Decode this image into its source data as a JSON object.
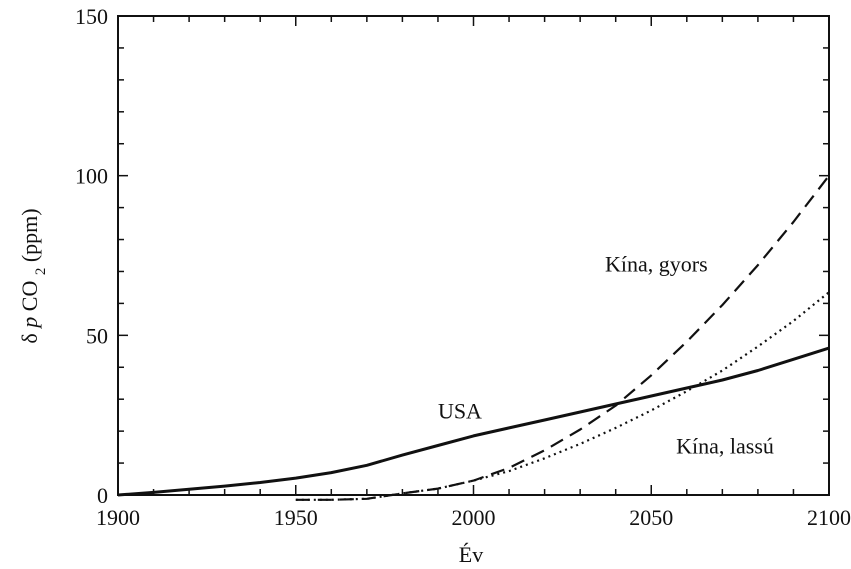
{
  "chart_data": {
    "type": "line",
    "xlabel": "Év",
    "ylabel_parts": {
      "delta": "δ",
      "p": "p",
      "co": "CO",
      "sub": "2",
      "unit": " (ppm)"
    },
    "xlim": [
      1900,
      2100
    ],
    "ylim": [
      0,
      150
    ],
    "x_ticks": [
      1900,
      1950,
      2000,
      2050,
      2100
    ],
    "y_ticks": [
      0,
      50,
      100,
      150
    ],
    "x_ticklabels": [
      "1900",
      "1950",
      "2000",
      "2050",
      "2100"
    ],
    "y_ticklabels": [
      "0",
      "50",
      "100",
      "150"
    ],
    "grid": false,
    "series": [
      {
        "name": "USA",
        "style": "solid",
        "x": [
          1900,
          1910,
          1920,
          1930,
          1940,
          1950,
          1960,
          1970,
          1980,
          1990,
          2000,
          2010,
          2020,
          2030,
          2040,
          2050,
          2060,
          2070,
          2080,
          2090,
          2100
        ],
        "y": [
          0,
          0.8,
          1.8,
          2.8,
          3.9,
          5.3,
          7.0,
          9.3,
          12.5,
          15.5,
          18.5,
          21.0,
          23.5,
          26.0,
          28.5,
          31.0,
          33.5,
          36.0,
          39.0,
          42.5,
          46.0
        ]
      },
      {
        "name": "Kína, gyors",
        "style": "dashed",
        "x": [
          1950,
          1960,
          1970,
          1980,
          1990,
          2000,
          2010,
          2020,
          2030,
          2040,
          2050,
          2060,
          2070,
          2080,
          2090,
          2100
        ],
        "y": [
          -1.5,
          -1.5,
          -1.2,
          0.5,
          2.0,
          4.5,
          8.5,
          14.0,
          20.5,
          28.0,
          37.5,
          48.0,
          59.5,
          72.0,
          85.5,
          100.0
        ]
      },
      {
        "name": "Kína, lassú",
        "style": "dotted",
        "x": [
          1950,
          1960,
          1970,
          1980,
          1990,
          2000,
          2010,
          2020,
          2030,
          2040,
          2050,
          2060,
          2070,
          2080,
          2090,
          2100
        ],
        "y": [
          -1.5,
          -1.5,
          -1.2,
          0.5,
          2.0,
          4.5,
          7.5,
          11.5,
          16.0,
          21.0,
          26.5,
          32.5,
          39.0,
          46.5,
          54.5,
          63.5
        ]
      }
    ],
    "annotations": [
      {
        "text": "USA",
        "x": 1990,
        "y": 24
      },
      {
        "text": "Kína, gyors",
        "x": 2037,
        "y": 70
      },
      {
        "text": "Kína, lassú",
        "x": 2057,
        "y": 13
      }
    ]
  }
}
